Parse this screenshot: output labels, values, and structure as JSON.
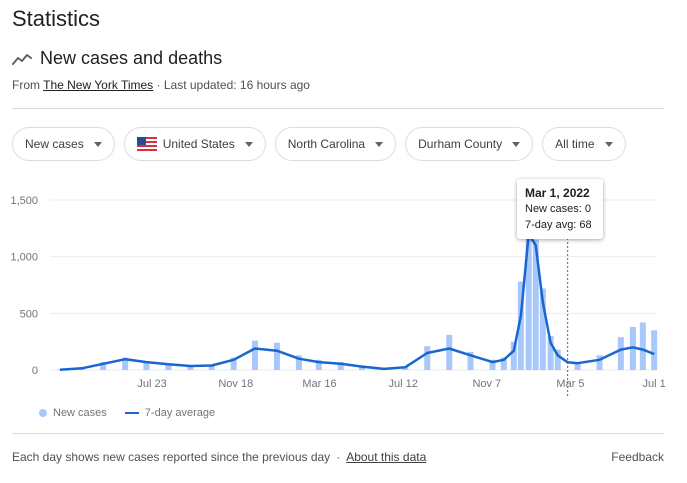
{
  "page": {
    "title": "Statistics"
  },
  "section": {
    "title": "New cases and deaths",
    "icon": "trend-line-icon"
  },
  "source": {
    "prefix": "From",
    "link": "The New York Times",
    "updated": "· Last updated: 16 hours ago"
  },
  "filters": [
    {
      "label": "New cases"
    },
    {
      "label": "United States",
      "icon": "us-flag-icon"
    },
    {
      "label": "North Carolina"
    },
    {
      "label": "Durham County"
    },
    {
      "label": "All time"
    }
  ],
  "colors": {
    "bars": "#a8c7fa",
    "avg_line": "#1a66d1",
    "grid": "#ebebeb",
    "axis": "#70757a"
  },
  "tooltip": {
    "date": "Mar 1, 2022",
    "new_cases": "New cases: 0",
    "avg": "7-day avg: 68"
  },
  "legend": {
    "bars": "New cases",
    "line": "7-day average"
  },
  "footer": {
    "note": "Each day shows new cases reported since the previous day",
    "sep": "·",
    "about": "About this data",
    "feedback": "Feedback"
  },
  "chart_data": {
    "type": "bar",
    "y_ticks": [
      "0",
      "500",
      "1,000",
      "1,500"
    ],
    "x_ticks": [
      "Jul 23",
      "Nov 18",
      "Mar 16",
      "Jul 12",
      "Nov 7",
      "Mar 5",
      "Jul 1"
    ],
    "ylim": [
      0,
      1500
    ],
    "grid": true,
    "x": [
      "2020-03-15",
      "2020-04-15",
      "2020-05-15",
      "2020-06-15",
      "2020-07-15",
      "2020-08-15",
      "2020-09-15",
      "2020-10-15",
      "2020-11-15",
      "2020-12-15",
      "2021-01-15",
      "2021-02-15",
      "2021-03-15",
      "2021-04-15",
      "2021-05-15",
      "2021-06-15",
      "2021-07-15",
      "2021-08-15",
      "2021-09-15",
      "2021-10-15",
      "2021-11-15",
      "2021-12-01",
      "2021-12-15",
      "2021-12-25",
      "2022-01-05",
      "2022-01-15",
      "2022-01-25",
      "2022-02-05",
      "2022-02-15",
      "2022-03-01",
      "2022-03-15",
      "2022-04-15",
      "2022-05-15",
      "2022-06-01",
      "2022-06-15",
      "2022-07-01"
    ],
    "series": [
      {
        "name": "New cases",
        "values": [
          5,
          20,
          70,
          110,
          80,
          60,
          40,
          50,
          110,
          260,
          240,
          130,
          90,
          70,
          40,
          15,
          30,
          210,
          310,
          160,
          90,
          110,
          250,
          780,
          1280,
          1150,
          720,
          300,
          180,
          0,
          70,
          130,
          290,
          380,
          420,
          350
        ]
      },
      {
        "name": "7-day average",
        "values": [
          3,
          15,
          55,
          95,
          70,
          50,
          35,
          40,
          90,
          190,
          170,
          100,
          70,
          55,
          30,
          10,
          25,
          150,
          190,
          130,
          70,
          90,
          170,
          480,
          1200,
          1100,
          600,
          240,
          130,
          68,
          60,
          90,
          180,
          200,
          180,
          140
        ]
      }
    ]
  }
}
